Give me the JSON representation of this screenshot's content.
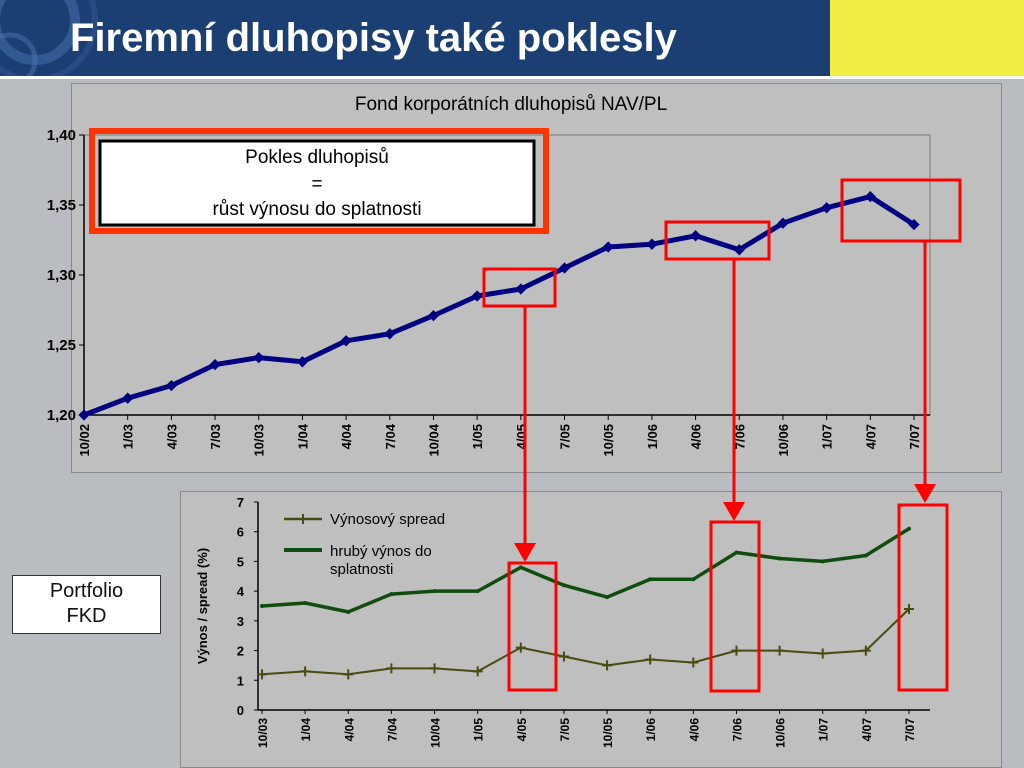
{
  "slide": {
    "title": "Firemní dluhopisy také poklesly",
    "portfolio_label": [
      "Portfolio",
      "FKD"
    ],
    "colors": {
      "header_bg": "#1c3f73",
      "accent_yellow": "#f2ed45",
      "highlight_red": "#ff0000",
      "callout_border": "#ff3300"
    }
  },
  "chart_data": [
    {
      "type": "line",
      "title": "Fond korporátních dluhopisů NAV/PL",
      "xlabel": "",
      "ylabel": "",
      "ylim": [
        1.2,
        1.4
      ],
      "yticks": [
        "1,20",
        "1,25",
        "1,30",
        "1,35",
        "1,40"
      ],
      "xticks": [
        "10/02",
        "1/03",
        "4/03",
        "7/03",
        "10/03",
        "1/04",
        "4/04",
        "7/04",
        "10/04",
        "1/05",
        "4/05",
        "7/05",
        "10/05",
        "1/06",
        "4/06",
        "7/06",
        "10/06",
        "1/07",
        "4/07",
        "7/07"
      ],
      "grid": false,
      "callout": [
        "Pokles dluhopisů",
        "=",
        "růst výnosu do splatnosti"
      ],
      "series": [
        {
          "color": "#000080",
          "x": [
            "10/02",
            "1/03",
            "4/03",
            "7/03",
            "10/03",
            "1/04",
            "4/04",
            "7/04",
            "10/04",
            "1/05",
            "4/05",
            "7/05",
            "10/05",
            "1/06",
            "4/06",
            "7/06",
            "10/06",
            "1/07",
            "4/07",
            "7/07"
          ],
          "values": [
            1.2,
            1.212,
            1.221,
            1.236,
            1.241,
            1.238,
            1.253,
            1.258,
            1.271,
            1.285,
            1.29,
            1.305,
            1.32,
            1.322,
            1.328,
            1.318,
            1.337,
            1.348,
            1.356,
            1.336
          ]
        }
      ]
    },
    {
      "type": "line",
      "title": "",
      "xlabel": "",
      "ylabel": "Výnos / spread (%)",
      "ylim": [
        0,
        7
      ],
      "yticks": [
        "0",
        "1",
        "2",
        "3",
        "4",
        "5",
        "6",
        "7"
      ],
      "xticks": [
        "10/03",
        "1/04",
        "4/04",
        "7/04",
        "10/04",
        "1/05",
        "4/05",
        "7/05",
        "10/05",
        "1/06",
        "4/06",
        "7/06",
        "10/06",
        "1/07",
        "4/07",
        "7/07"
      ],
      "grid": false,
      "legend_position": "top-left",
      "series": [
        {
          "name": "Výnosový spread",
          "color": "#4a4a10",
          "marker": "plus",
          "x": [
            "10/03",
            "1/04",
            "4/04",
            "7/04",
            "10/04",
            "1/05",
            "4/05",
            "7/05",
            "10/05",
            "1/06",
            "4/06",
            "7/06",
            "10/06",
            "1/07",
            "4/07",
            "7/07"
          ],
          "values": [
            1.2,
            1.3,
            1.2,
            1.4,
            1.4,
            1.3,
            2.1,
            1.8,
            1.5,
            1.7,
            1.6,
            2.0,
            2.0,
            1.9,
            2.0,
            3.4
          ]
        },
        {
          "name": "hrubý výnos do splatnosti",
          "color": "#0f4d0f",
          "marker": "none",
          "x": [
            "10/03",
            "1/04",
            "4/04",
            "7/04",
            "10/04",
            "1/05",
            "4/05",
            "7/05",
            "10/05",
            "1/06",
            "4/06",
            "7/06",
            "10/06",
            "1/07",
            "4/07",
            "7/07"
          ],
          "values": [
            3.5,
            3.6,
            3.3,
            3.9,
            4.0,
            4.0,
            4.8,
            4.2,
            3.8,
            4.4,
            4.4,
            5.3,
            5.1,
            5.0,
            5.2,
            6.1
          ]
        }
      ]
    }
  ]
}
